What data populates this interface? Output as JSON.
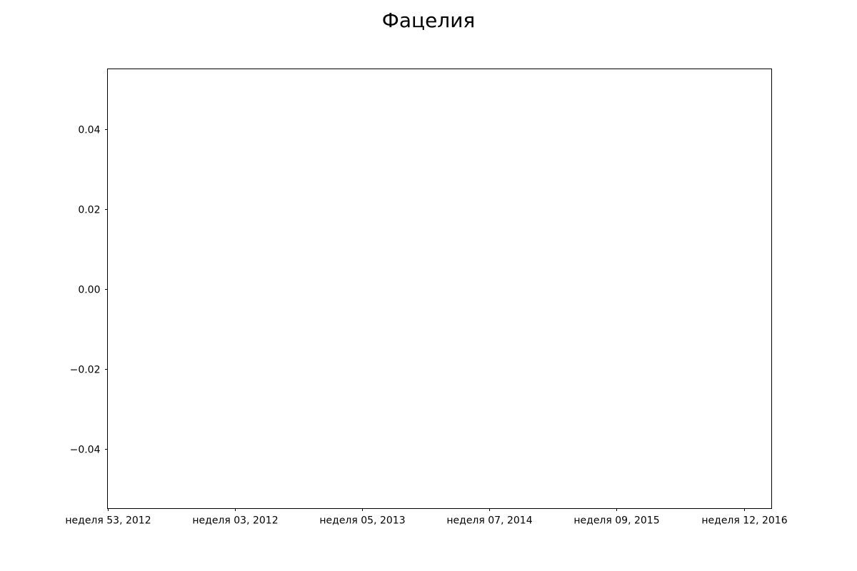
{
  "chart_data": {
    "type": "line",
    "title": "Фацелия",
    "xlabel": "",
    "ylabel": "",
    "x_ticks": [
      "неделя 53, 2012",
      "неделя 03, 2012",
      "неделя 05, 2013",
      "неделя 07, 2014",
      "неделя 09, 2015",
      "неделя 12, 2016"
    ],
    "y_ticks": [
      0.04,
      0.02,
      0.0,
      -0.02,
      -0.04
    ],
    "y_tick_labels": [
      "0.04",
      "0.02",
      "0.00",
      "−0.02",
      "−0.04"
    ],
    "ylim": [
      -0.055,
      0.055
    ],
    "series": [],
    "grid": false,
    "legend": "none"
  }
}
